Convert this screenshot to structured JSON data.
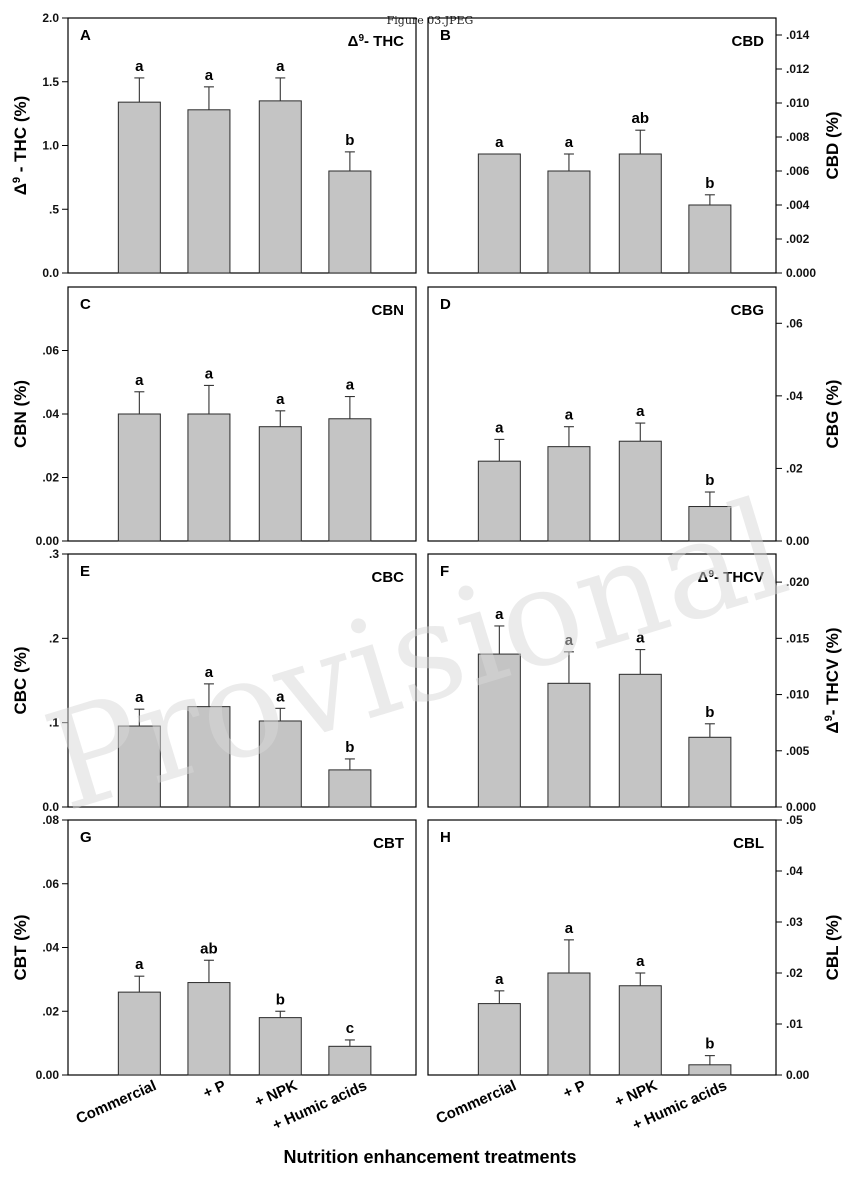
{
  "caption": "Figure 03.JPEG",
  "watermark": "Provisional",
  "x_axis_title": "Nutrition enhancement treatments",
  "categories": [
    "Commercial",
    "+ P",
    "+ NPK",
    "+ Humic acids"
  ],
  "colors": {
    "bar_fill": "#c4c4c4",
    "bar_stroke": "#2a2a2a"
  },
  "chart_data": [
    {
      "type": "bar",
      "panel": "A",
      "title_base": "Δ",
      "title_sup": "9",
      "title_rest": "- THC",
      "ylabel_base": "Δ",
      "ylabel_sup": "9",
      "ylabel_rest": " - THC (%)",
      "yaxis_side": "left",
      "ylim": [
        0,
        2.0
      ],
      "ticks": [
        0,
        0.5,
        1.0,
        1.5,
        2.0
      ],
      "tick_labels": [
        "0.0",
        ".5",
        "1.0",
        "1.5",
        "2.0"
      ],
      "values": [
        1.34,
        1.28,
        1.35,
        0.8
      ],
      "errors": [
        0.19,
        0.18,
        0.18,
        0.15
      ],
      "letters": [
        "a",
        "a",
        "a",
        "b"
      ]
    },
    {
      "type": "bar",
      "panel": "B",
      "title": "CBD",
      "ylabel": "CBD (%)",
      "yaxis_side": "right",
      "ylim": [
        0,
        0.015
      ],
      "ticks": [
        0,
        0.002,
        0.004,
        0.006,
        0.008,
        0.01,
        0.012,
        0.014
      ],
      "tick_labels": [
        "0.000",
        ".002",
        ".004",
        ".006",
        ".008",
        ".010",
        ".012",
        ".014"
      ],
      "values": [
        0.007,
        0.006,
        0.007,
        0.004
      ],
      "errors": [
        0.0,
        0.001,
        0.0014,
        0.0006
      ],
      "letters": [
        "a",
        "a",
        "ab",
        "b"
      ]
    },
    {
      "type": "bar",
      "panel": "C",
      "title": "CBN",
      "ylabel": "CBN (%)",
      "yaxis_side": "left",
      "ylim": [
        0,
        0.08
      ],
      "ticks": [
        0,
        0.02,
        0.04,
        0.06
      ],
      "tick_labels": [
        "0.00",
        ".02",
        ".04",
        ".06"
      ],
      "values": [
        0.04,
        0.04,
        0.036,
        0.0385
      ],
      "errors": [
        0.007,
        0.009,
        0.005,
        0.007
      ],
      "letters": [
        "a",
        "a",
        "a",
        "a"
      ]
    },
    {
      "type": "bar",
      "panel": "D",
      "title": "CBG",
      "ylabel": "CBG (%)",
      "yaxis_side": "right",
      "ylim": [
        0,
        0.07
      ],
      "ticks": [
        0,
        0.02,
        0.04,
        0.06
      ],
      "tick_labels": [
        "0.00",
        ".02",
        ".04",
        ".06"
      ],
      "values": [
        0.022,
        0.026,
        0.0275,
        0.0095
      ],
      "errors": [
        0.006,
        0.0055,
        0.005,
        0.004
      ],
      "letters": [
        "a",
        "a",
        "a",
        "b"
      ]
    },
    {
      "type": "bar",
      "panel": "E",
      "title": "CBC",
      "ylabel": "CBC (%)",
      "yaxis_side": "left",
      "ylim": [
        0,
        0.3
      ],
      "ticks": [
        0,
        0.1,
        0.2,
        0.3
      ],
      "tick_labels": [
        "0.0",
        ".1",
        ".2",
        ".3"
      ],
      "values": [
        0.096,
        0.119,
        0.102,
        0.044
      ],
      "errors": [
        0.02,
        0.027,
        0.015,
        0.013
      ],
      "letters": [
        "a",
        "a",
        "a",
        "b"
      ]
    },
    {
      "type": "bar",
      "panel": "F",
      "title_base": "Δ",
      "title_sup": "9",
      "title_rest": "- THCV",
      "ylabel_base": "Δ",
      "ylabel_sup": "9",
      "ylabel_rest": "- THCV (%)",
      "yaxis_side": "right",
      "ylim": [
        0,
        0.0225
      ],
      "ticks": [
        0,
        0.005,
        0.01,
        0.015,
        0.02
      ],
      "tick_labels": [
        "0.000",
        ".005",
        ".010",
        ".015",
        ".020"
      ],
      "values": [
        0.0136,
        0.011,
        0.0118,
        0.0062
      ],
      "errors": [
        0.0025,
        0.0028,
        0.0022,
        0.0012
      ],
      "letters": [
        "a",
        "a",
        "a",
        "b"
      ]
    },
    {
      "type": "bar",
      "panel": "G",
      "title": "CBT",
      "ylabel": "CBT (%)",
      "yaxis_side": "left",
      "ylim": [
        0,
        0.08
      ],
      "ticks": [
        0,
        0.02,
        0.04,
        0.06,
        0.08
      ],
      "tick_labels": [
        "0.00",
        ".02",
        ".04",
        ".06",
        ".08"
      ],
      "values": [
        0.026,
        0.029,
        0.018,
        0.009
      ],
      "errors": [
        0.005,
        0.007,
        0.002,
        0.002
      ],
      "letters": [
        "a",
        "ab",
        "b",
        "c"
      ]
    },
    {
      "type": "bar",
      "panel": "H",
      "title": "CBL",
      "ylabel": "CBL (%)",
      "yaxis_side": "right",
      "ylim": [
        0,
        0.05
      ],
      "ticks": [
        0,
        0.01,
        0.02,
        0.03,
        0.04,
        0.05
      ],
      "tick_labels": [
        "0.00",
        ".01",
        ".02",
        ".03",
        ".04",
        ".05"
      ],
      "values": [
        0.014,
        0.02,
        0.0175,
        0.002
      ],
      "errors": [
        0.0025,
        0.0065,
        0.0025,
        0.0018
      ],
      "letters": [
        "a",
        "a",
        "a",
        "b"
      ]
    }
  ]
}
